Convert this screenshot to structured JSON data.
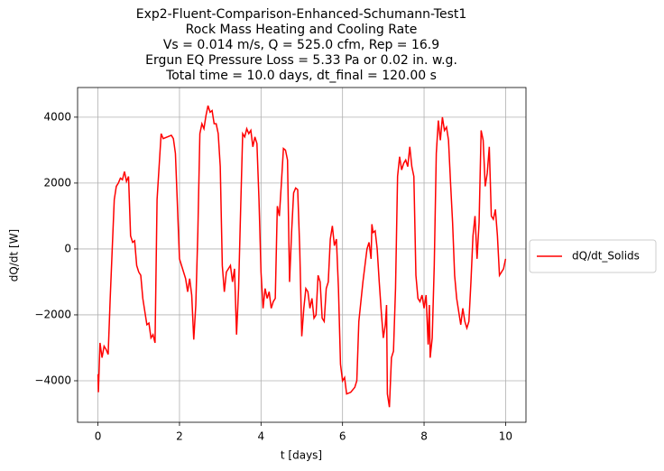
{
  "chart_data": {
    "type": "line",
    "title": [
      "Exp2-Fluent-Comparison-Enhanced-Schumann-Test1",
      "Rock Mass Heating and Cooling Rate",
      "Vs = 0.014 m/s, Q = 525.0 cfm, Rep = 16.9",
      "Ergun EQ Pressure Loss = 5.33 Pa or 0.02 in. w.g.",
      "Total time = 10.0 days, dt_final = 120.00 s"
    ],
    "xlabel": "t [days]",
    "ylabel": "dQ/dt [W]",
    "x": [
      0,
      0.01,
      0.05,
      0.1,
      0.15,
      0.2,
      0.25,
      0.3,
      0.35,
      0.4,
      0.45,
      0.5,
      0.55,
      0.6,
      0.65,
      0.7,
      0.75,
      0.8,
      0.85,
      0.9,
      0.95,
      1.0,
      1.05,
      1.1,
      1.15,
      1.2,
      1.25,
      1.3,
      1.35,
      1.4,
      1.45,
      1.5,
      1.55,
      1.6,
      1.7,
      1.8,
      1.85,
      1.9,
      2.0,
      2.1,
      2.15,
      2.2,
      2.25,
      2.3,
      2.35,
      2.4,
      2.45,
      2.5,
      2.55,
      2.6,
      2.65,
      2.7,
      2.75,
      2.8,
      2.85,
      2.9,
      2.95,
      3.0,
      3.05,
      3.1,
      3.15,
      3.2,
      3.25,
      3.3,
      3.35,
      3.4,
      3.45,
      3.5,
      3.55,
      3.6,
      3.65,
      3.7,
      3.75,
      3.8,
      3.85,
      3.9,
      3.95,
      4.0,
      4.05,
      4.1,
      4.15,
      4.2,
      4.25,
      4.3,
      4.35,
      4.4,
      4.45,
      4.5,
      4.55,
      4.6,
      4.65,
      4.7,
      4.75,
      4.8,
      4.85,
      4.9,
      4.95,
      5.0,
      5.05,
      5.1,
      5.15,
      5.2,
      5.25,
      5.3,
      5.35,
      5.4,
      5.45,
      5.5,
      5.55,
      5.6,
      5.65,
      5.7,
      5.75,
      5.8,
      5.85,
      5.9,
      5.95,
      6.0,
      6.05,
      6.1,
      6.2,
      6.3,
      6.35,
      6.4,
      6.5,
      6.55,
      6.6,
      6.65,
      6.7,
      6.72,
      6.75,
      6.8,
      6.85,
      6.9,
      6.95,
      7.0,
      7.05,
      7.08,
      7.1,
      7.15,
      7.2,
      7.25,
      7.3,
      7.35,
      7.4,
      7.45,
      7.5,
      7.55,
      7.6,
      7.65,
      7.7,
      7.75,
      7.8,
      7.85,
      7.9,
      7.95,
      8.0,
      8.05,
      8.1,
      8.13,
      8.15,
      8.2,
      8.25,
      8.3,
      8.35,
      8.4,
      8.45,
      8.5,
      8.55,
      8.6,
      8.65,
      8.7,
      8.75,
      8.8,
      8.85,
      8.9,
      8.95,
      9.0,
      9.05,
      9.1,
      9.15,
      9.2,
      9.25,
      9.3,
      9.35,
      9.4,
      9.45,
      9.5,
      9.55,
      9.6,
      9.65,
      9.7,
      9.75,
      9.8,
      9.85,
      9.9,
      9.95,
      10.0
    ],
    "series": [
      {
        "name": "dQ/dt_Solids",
        "color": "#ff0000",
        "values": [
          -3800,
          -4350,
          -2850,
          -3300,
          -2950,
          -3050,
          -3200,
          -1500,
          0,
          1500,
          1900,
          2000,
          2150,
          2100,
          2350,
          2050,
          2200,
          400,
          200,
          250,
          -500,
          -700,
          -800,
          -1500,
          -1900,
          -2300,
          -2250,
          -2700,
          -2600,
          -2850,
          1500,
          2500,
          3500,
          3350,
          3400,
          3450,
          3350,
          2900,
          -300,
          -700,
          -900,
          -1300,
          -900,
          -1400,
          -2750,
          -1700,
          500,
          3500,
          3800,
          3650,
          4050,
          4350,
          4150,
          4200,
          3800,
          3800,
          3500,
          2500,
          -500,
          -1300,
          -700,
          -600,
          -500,
          -1000,
          -600,
          -2600,
          -1200,
          1200,
          3500,
          3400,
          3650,
          3500,
          3600,
          3100,
          3400,
          3200,
          1500,
          -700,
          -1800,
          -1200,
          -1500,
          -1300,
          -1800,
          -1600,
          -1500,
          1300,
          1000,
          2000,
          3050,
          3000,
          2700,
          -1000,
          500,
          1700,
          1850,
          1800,
          0,
          -2650,
          -1800,
          -1200,
          -1300,
          -1800,
          -1500,
          -2100,
          -2000,
          -800,
          -1000,
          -2100,
          -2200,
          -1200,
          -1000,
          300,
          700,
          100,
          300,
          -1200,
          -3500,
          -4000,
          -3900,
          -4400,
          -4350,
          -4200,
          -4000,
          -2200,
          -1000,
          -500,
          0,
          200,
          -300,
          750,
          500,
          550,
          0,
          -1000,
          -1900,
          -2700,
          -2300,
          -1700,
          -4400,
          -4800,
          -3300,
          -3100,
          -1200,
          2200,
          2800,
          2400,
          2600,
          2700,
          2500,
          3100,
          2500,
          2200,
          -800,
          -1500,
          -1600,
          -1400,
          -1800,
          -1400,
          -2900,
          -1700,
          -3300,
          -2700,
          -500,
          2900,
          3900,
          3300,
          4000,
          3600,
          3700,
          3300,
          2000,
          800,
          -800,
          -1500,
          -1900,
          -2300,
          -1800,
          -2200,
          -2400,
          -2200,
          -1000,
          400,
          1000,
          -300,
          800,
          3600,
          3300,
          1900,
          2300,
          3100,
          1000,
          900,
          1200,
          400,
          -800,
          -700,
          -600,
          -300
        ]
      }
    ],
    "xlim": [
      -0.5,
      10.5
    ],
    "xticks": [
      0,
      2,
      4,
      6,
      8,
      10
    ],
    "ylim": [
      -5260,
      4900
    ],
    "yticks": [
      {
        "value": -4000,
        "label": "−4000"
      },
      {
        "value": -2000,
        "label": "−2000"
      },
      0,
      2000,
      4000
    ],
    "grid": true,
    "legend": "outside right"
  }
}
